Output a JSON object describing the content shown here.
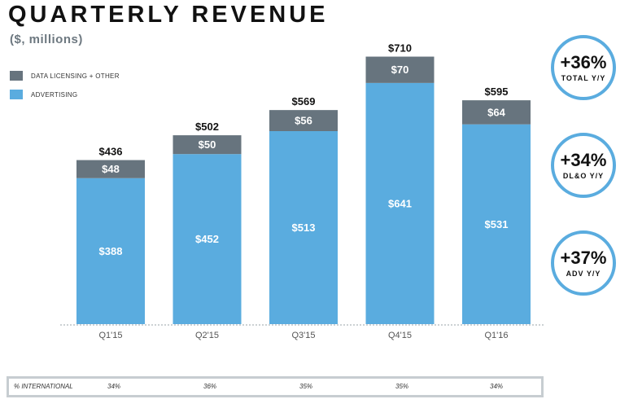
{
  "header": {
    "title": "QUARTERLY REVENUE",
    "subtitle": "($, millions)"
  },
  "legend": {
    "items": [
      {
        "label": "DATA LICENSING + OTHER",
        "color": "#67747e"
      },
      {
        "label": "ADVERTISING",
        "color": "#5aacdf"
      }
    ]
  },
  "chart_data": {
    "type": "bar",
    "stacked": true,
    "title": "QUARTERLY REVENUE",
    "subtitle": "($, millions)",
    "xlabel": "",
    "ylabel": "",
    "ylim": [
      0,
      710
    ],
    "grid": false,
    "categories": [
      "Q1'15",
      "Q2'15",
      "Q3'15",
      "Q4'15",
      "Q1'16"
    ],
    "series": [
      {
        "name": "ADVERTISING",
        "color": "#5aacdf",
        "values": [
          388,
          452,
          513,
          641,
          531
        ],
        "labels": [
          "$388",
          "$452",
          "$513",
          "$641",
          "$531"
        ]
      },
      {
        "name": "DATA LICENSING + OTHER",
        "color": "#67747e",
        "values": [
          48,
          50,
          56,
          70,
          64
        ],
        "labels": [
          "$48",
          "$50",
          "$56",
          "$70",
          "$64"
        ]
      }
    ],
    "totals": [
      436,
      502,
      569,
      710,
      595
    ],
    "total_labels": [
      "$436",
      "$502",
      "$569",
      "$710",
      "$595"
    ]
  },
  "badges": [
    {
      "value": "+36%",
      "label": "TOTAL Y/Y"
    },
    {
      "value": "+34%",
      "label": "DL&O Y/Y"
    },
    {
      "value": "+37%",
      "label": "ADV Y/Y"
    }
  ],
  "international": {
    "label": "% INTERNATIONAL",
    "values": [
      "34%",
      "36%",
      "35%",
      "35%",
      "34%"
    ]
  },
  "colors": {
    "advertising": "#5aacdf",
    "data_licensing": "#67747e",
    "badge_ring": "#5aacdf",
    "table_border": "#c7cdd1"
  }
}
